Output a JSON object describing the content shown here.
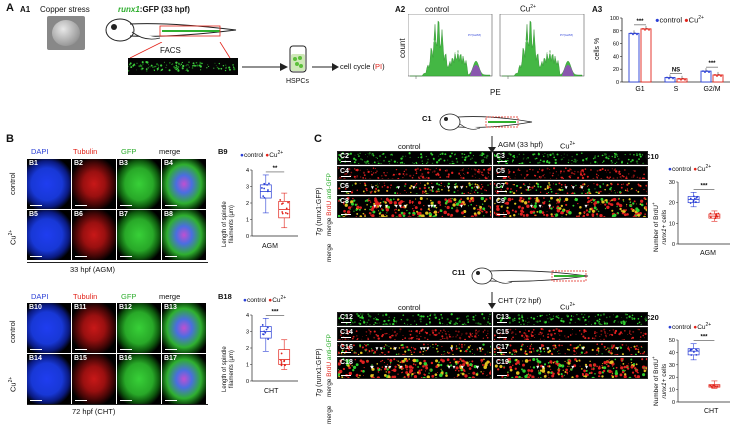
{
  "panels": {
    "A": "A",
    "B": "B",
    "C": "C",
    "A1": "A1",
    "A2": "A2",
    "A3": "A3",
    "C1": "C1",
    "C11": "C11",
    "B9": "B9",
    "B18": "B18",
    "C10": "C10",
    "C20": "C20"
  },
  "a1": {
    "copper_stress": "Copper stress",
    "runx1": "runx1",
    "gfp_stage": ":GFP (33 hpf)",
    "facs": "FACS",
    "hspcs": "HSPCs",
    "cell_cycle": "cell cycle (",
    "pi": "PI",
    "close": ")"
  },
  "a2": {
    "control": "control",
    "cu": "Cu",
    "cu_sup": "2+",
    "ylabel": "count",
    "xlabel": "PE",
    "gate1": "P5(G1)",
    "gate2": "P6(S)",
    "gate3": "P7(G2/M)"
  },
  "a3": {
    "ylabel": "cells %",
    "legend_control": "control",
    "legend_cu": "Cu",
    "legend_cu_sup": "2+",
    "chart_data": {
      "type": "bar",
      "categories": [
        "G1",
        "S",
        "G2/M"
      ],
      "series": [
        {
          "name": "control",
          "values": [
            76,
            7,
            17
          ]
        },
        {
          "name": "Cu2+",
          "values": [
            83,
            5,
            11
          ]
        }
      ],
      "yticks": [
        0,
        20,
        40,
        60,
        80,
        100
      ],
      "ylim": [
        0,
        100
      ],
      "significance": [
        "***",
        "NS",
        "***"
      ]
    }
  },
  "b": {
    "dapi": "DAPI",
    "tubulin": "Tubulin",
    "gfp": "GFP",
    "merge": "merge",
    "control": "control",
    "cu": "Cu",
    "cu_sup": "2+",
    "label_top": "33 hpf (AGM)",
    "label_bottom": "72 hpf (CHT)",
    "cells_top": [
      "B1",
      "B2",
      "B3",
      "B4",
      "B5",
      "B6",
      "B7",
      "B8"
    ],
    "cells_bottom": [
      "B10",
      "B11",
      "B12",
      "B13",
      "B14",
      "B15",
      "B16",
      "B17"
    ]
  },
  "b9": {
    "legend_control": "control",
    "legend_cu": "Cu",
    "legend_cu_sup": "2+",
    "ylabel1": "Length of spindle",
    "ylabel2": "filaments (μm)",
    "xlabel": "AGM",
    "sig": "**",
    "chart_data": {
      "type": "box",
      "categories": [
        "control",
        "Cu2+"
      ],
      "yticks": [
        0,
        1,
        2,
        3,
        4
      ],
      "ylim": [
        0,
        4
      ],
      "series": [
        {
          "name": "control",
          "min": 1.4,
          "q1": 2.3,
          "median": 2.7,
          "q3": 3.1,
          "max": 3.7
        },
        {
          "name": "Cu2+",
          "min": 0.5,
          "q1": 1.1,
          "median": 1.6,
          "q3": 2.1,
          "max": 2.6
        }
      ]
    }
  },
  "b18": {
    "legend_control": "control",
    "legend_cu": "Cu",
    "legend_cu_sup": "2+",
    "ylabel1": "Length of spindle",
    "ylabel2": "filaments (μm)",
    "xlabel": "CHT",
    "sig": "***",
    "chart_data": {
      "type": "box",
      "categories": [
        "control",
        "Cu2+"
      ],
      "yticks": [
        0,
        1,
        2,
        3,
        4
      ],
      "ylim": [
        0,
        4
      ],
      "series": [
        {
          "name": "control",
          "min": 1.8,
          "q1": 2.6,
          "median": 3.0,
          "q3": 3.3,
          "max": 3.8
        },
        {
          "name": "Cu2+",
          "min": 0.7,
          "q1": 1.0,
          "median": 1.3,
          "q3": 1.9,
          "max": 2.5
        }
      ]
    }
  },
  "c": {
    "agm_stage": "AGM (33 hpf)",
    "cht_stage": "CHT (72 hpf)",
    "control": "control",
    "cu": "Cu",
    "cu_sup": "2+",
    "tg": "Tg",
    "tg_gfp": "(runx1:GFP)",
    "brdu": "BrdU",
    "anti_gfp": "anti-GFP",
    "merge": "merge",
    "strips_top": [
      "C2",
      "C3",
      "C4",
      "C5",
      "C6",
      "C7",
      "C8",
      "C9"
    ],
    "strips_bottom": [
      "C12",
      "C13",
      "C14",
      "C15",
      "C16",
      "C17",
      "C18",
      "C19"
    ]
  },
  "c10": {
    "legend_control": "control",
    "legend_cu": "Cu",
    "legend_cu_sup": "2+",
    "ylabel1": "Number of BrdU",
    "ylabel_sup": "+",
    "ylabel2": "runx1",
    "ylabel3": "+ cells",
    "xlabel": "AGM",
    "sig": "***",
    "chart_data": {
      "type": "box",
      "categories": [
        "control",
        "Cu2+"
      ],
      "yticks": [
        0,
        10,
        20,
        30
      ],
      "ylim": [
        0,
        30
      ],
      "series": [
        {
          "name": "control",
          "min": 18,
          "q1": 20,
          "median": 21.5,
          "q3": 23,
          "max": 25
        },
        {
          "name": "Cu2+",
          "min": 11,
          "q1": 12.5,
          "median": 13.5,
          "q3": 14.5,
          "max": 16
        }
      ]
    }
  },
  "c20": {
    "legend_control": "control",
    "legend_cu": "Cu",
    "legend_cu_sup": "2+",
    "ylabel1": "Number of BrdU",
    "ylabel_sup": "+",
    "ylabel2": "runx1",
    "ylabel3": "+ cells",
    "xlabel": "CHT",
    "sig": "***",
    "chart_data": {
      "type": "box",
      "categories": [
        "control",
        "Cu2+"
      ],
      "yticks": [
        0,
        10,
        20,
        30,
        40,
        50
      ],
      "ylim": [
        0,
        50
      ],
      "series": [
        {
          "name": "control",
          "min": 34,
          "q1": 38,
          "median": 41,
          "q3": 43,
          "max": 47
        },
        {
          "name": "Cu2+",
          "min": 11,
          "q1": 12,
          "median": 13,
          "q3": 14,
          "max": 17
        }
      ]
    }
  },
  "colors": {
    "control": "#2a3fd6",
    "cu": "#e2231a",
    "gfp": "#2fae2f",
    "tubulin": "#e2231a",
    "dapi": "#2a3fd6"
  }
}
